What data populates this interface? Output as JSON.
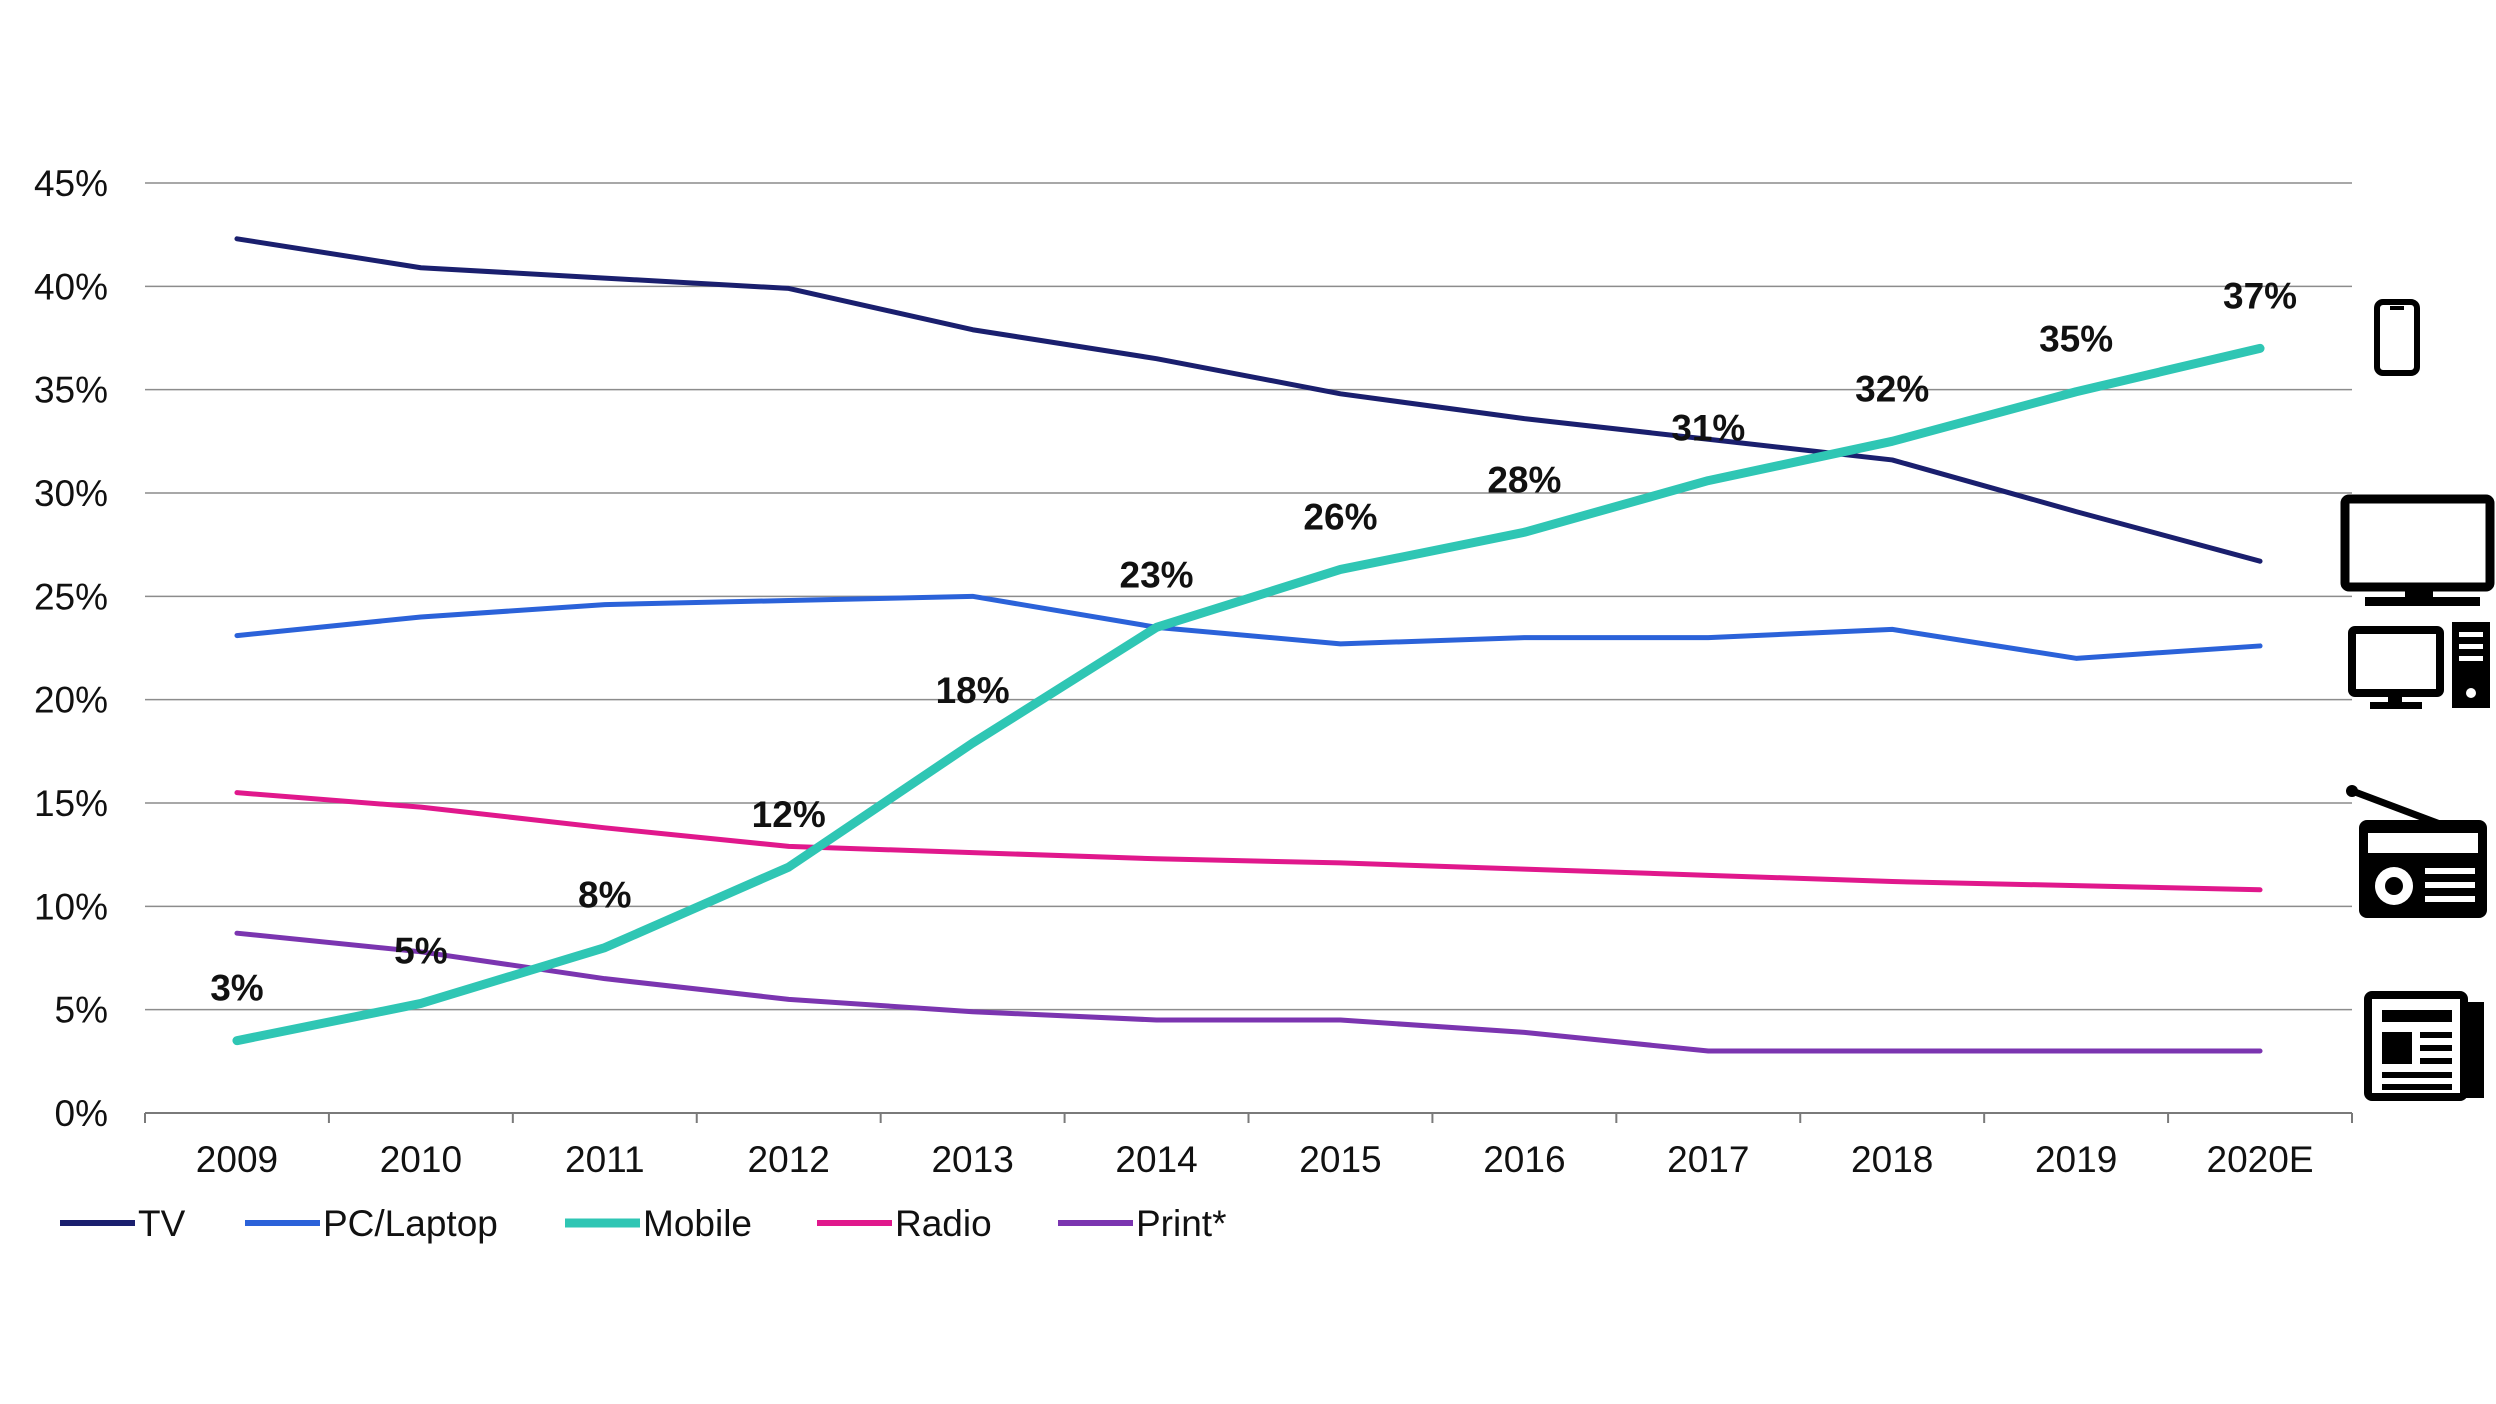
{
  "chart_data": {
    "type": "line",
    "title": "",
    "xlabel": "",
    "ylabel": "",
    "categories": [
      "2009",
      "2010",
      "2011",
      "2012",
      "2013",
      "2014",
      "2015",
      "2016",
      "2017",
      "2018",
      "2019",
      "2020E"
    ],
    "y_ticks": [
      "0%",
      "5%",
      "10%",
      "15%",
      "20%",
      "25%",
      "30%",
      "35%",
      "40%",
      "45%"
    ],
    "ylim": [
      0,
      45
    ],
    "grid": "horizontal",
    "legend_position": "bottom-left",
    "series": [
      {
        "name": "TV",
        "color": "#1a1f6e",
        "values": [
          42.3,
          40.9,
          40.4,
          39.9,
          37.9,
          36.5,
          34.8,
          33.6,
          32.6,
          31.6,
          29.1,
          26.7
        ]
      },
      {
        "name": "PC/Laptop",
        "color": "#2b62d9",
        "values": [
          23.1,
          24.0,
          24.6,
          24.8,
          25.0,
          23.5,
          22.7,
          23.0,
          23.0,
          23.4,
          22.0,
          22.6
        ]
      },
      {
        "name": "Mobile",
        "color": "#2fc6b4",
        "values": [
          3.5,
          5.3,
          8.0,
          11.9,
          17.9,
          23.5,
          26.3,
          28.1,
          30.6,
          32.5,
          34.9,
          37.0
        ],
        "data_labels": [
          "3%",
          "5%",
          "8%",
          "12%",
          "18%",
          "23%",
          "26%",
          "28%",
          "31%",
          "32%",
          "35%",
          "37%"
        ]
      },
      {
        "name": "Radio",
        "color": "#e0188c",
        "values": [
          15.5,
          14.8,
          13.8,
          12.9,
          12.6,
          12.3,
          12.1,
          11.8,
          11.5,
          11.2,
          11.0,
          10.8
        ]
      },
      {
        "name": "Print*",
        "color": "#7b35b0",
        "values": [
          8.7,
          7.8,
          6.5,
          5.5,
          4.9,
          4.5,
          4.5,
          3.9,
          3.0,
          3.0,
          3.0,
          3.0
        ]
      }
    ]
  },
  "icons": [
    "mobile-phone-icon",
    "tv-icon",
    "desktop-pc-icon",
    "radio-icon",
    "newspaper-icon"
  ]
}
